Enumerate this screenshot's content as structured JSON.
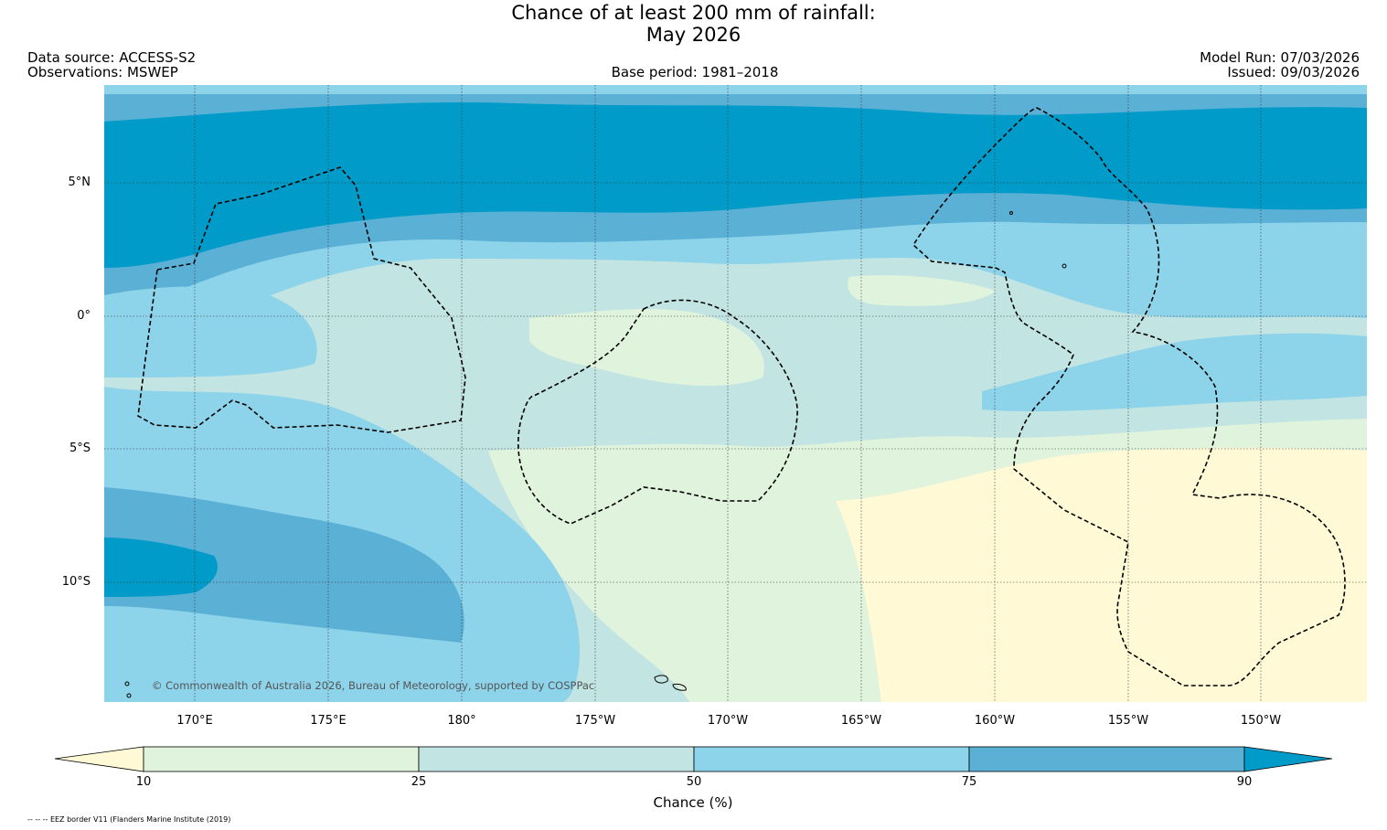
{
  "title_line1": "Chance of at least 200 mm of rainfall:",
  "title_line2": "May 2026",
  "data_source": "Data source: ACCESS-S2",
  "observations": "Observations: MSWEP",
  "base_period": "Base period: 1981–2018",
  "model_run": "Model Run: 07/03/2026",
  "issued": "Issued: 09/03/2026",
  "copyright": "© Commonwealth of Australia 2026, Bureau of Meteorology, supported by COSPPac",
  "lat_labels": [
    "5°N",
    "0°",
    "5°S",
    "10°S"
  ],
  "lon_labels": [
    "170°E",
    "175°E",
    "180°",
    "175°W",
    "170°W",
    "165°W",
    "160°W",
    "155°W",
    "150°W"
  ],
  "colorbar": {
    "title": "Chance (%)",
    "ticks": [
      "10",
      "25",
      "50",
      "75",
      "90"
    ],
    "colors": {
      "below_10": "#fff9d6",
      "10_25": "#e0f3dc",
      "25_50": "#c2e4e2",
      "50_75": "#8dd3ea",
      "75_90": "#5bb0d6",
      "above_90": "#009bc8"
    }
  },
  "footer": "-- -- -- EEZ border V11 (Flanders Marine Institute (2019)"
}
